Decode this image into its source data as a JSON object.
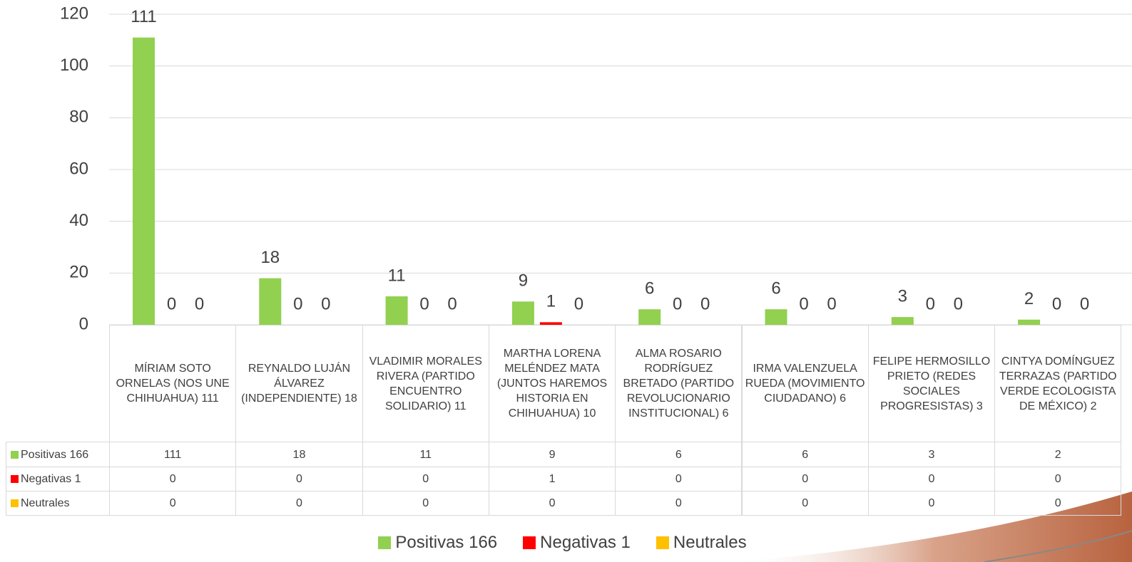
{
  "chart_data": {
    "type": "bar",
    "categories": [
      "MÍRIAM SOTO ORNELAS (NOS UNE CHIHUAHUA) 111",
      "REYNALDO LUJÁN ÁLVAREZ (INDEPENDIENTE) 18",
      "VLADIMIR MORALES RIVERA (PARTIDO ENCUENTRO SOLIDARIO) 11",
      "MARTHA LORENA MELÉNDEZ MATA (JUNTOS HAREMOS HISTORIA EN CHIHUAHUA) 10",
      "ALMA ROSARIO RODRÍGUEZ BRETADO (PARTIDO REVOLUCIONARIO INSTITUCIONAL) 6",
      "IRMA VALENZUELA RUEDA (MOVIMIENTO CIUDADANO) 6",
      "FELIPE HERMOSILLO PRIETO (REDES SOCIALES PROGRESISTAS) 3",
      "CINTYA DOMÍNGUEZ TERRAZAS (PARTIDO VERDE ECOLOGISTA DE MÉXICO) 2"
    ],
    "series": [
      {
        "name": "Positivas 166",
        "color": "#92d050",
        "values": [
          111,
          18,
          11,
          9,
          6,
          6,
          3,
          2
        ]
      },
      {
        "name": "Negativas 1",
        "color": "#ff0000",
        "values": [
          0,
          0,
          0,
          1,
          0,
          0,
          0,
          0
        ]
      },
      {
        "name": "Neutrales",
        "color": "#ffc000",
        "values": [
          0,
          0,
          0,
          0,
          0,
          0,
          0,
          0
        ]
      }
    ],
    "ylim": [
      0,
      120
    ],
    "yticks": [
      0,
      20,
      40,
      60,
      80,
      100,
      120
    ],
    "grid": true,
    "data_table": true,
    "legend": "bottom"
  }
}
